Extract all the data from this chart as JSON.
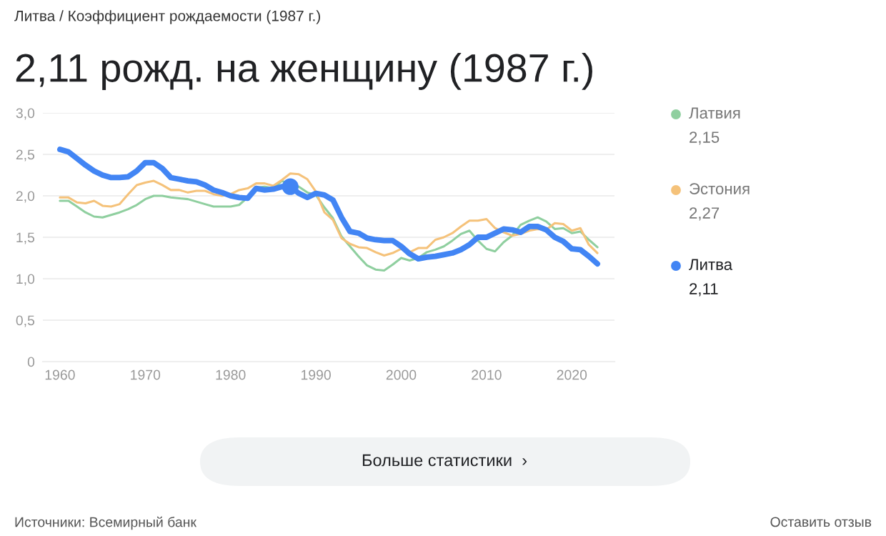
{
  "chart_data": {
    "type": "line",
    "title": "2,11 рожд. на женщину (1987 г.)",
    "x": [
      1960,
      1961,
      1962,
      1963,
      1964,
      1965,
      1966,
      1967,
      1968,
      1969,
      1970,
      1971,
      1972,
      1973,
      1974,
      1975,
      1976,
      1977,
      1978,
      1979,
      1980,
      1981,
      1982,
      1983,
      1984,
      1985,
      1986,
      1987,
      1988,
      1989,
      1990,
      1991,
      1992,
      1993,
      1994,
      1995,
      1996,
      1997,
      1998,
      1999,
      2000,
      2001,
      2002,
      2003,
      2004,
      2005,
      2006,
      2007,
      2008,
      2009,
      2010,
      2011,
      2012,
      2013,
      2014,
      2015,
      2016,
      2017,
      2018,
      2019,
      2020,
      2021,
      2022,
      2023
    ],
    "series": [
      {
        "name": "Латвия",
        "color": "#8fcf9f",
        "values": [
          1.94,
          1.94,
          1.87,
          1.8,
          1.75,
          1.74,
          1.77,
          1.8,
          1.84,
          1.89,
          1.96,
          2.0,
          2.0,
          1.98,
          1.97,
          1.96,
          1.93,
          1.9,
          1.87,
          1.87,
          1.87,
          1.89,
          1.98,
          2.1,
          2.11,
          2.09,
          2.18,
          null,
          2.11,
          2.04,
          2.01,
          1.86,
          1.73,
          1.51,
          1.39,
          1.27,
          1.16,
          1.11,
          1.1,
          1.17,
          1.25,
          1.22,
          1.25,
          1.32,
          1.35,
          1.39,
          1.46,
          1.54,
          1.58,
          1.46,
          1.36,
          1.33,
          1.44,
          1.52,
          1.65,
          1.7,
          1.74,
          1.69,
          1.6,
          1.61,
          1.55,
          1.57,
          1.47,
          1.38
        ]
      },
      {
        "name": "Эстония",
        "color": "#f5c27a",
        "values": [
          1.98,
          1.98,
          1.92,
          1.91,
          1.94,
          1.88,
          1.87,
          1.9,
          2.02,
          2.13,
          2.16,
          2.18,
          2.13,
          2.07,
          2.07,
          2.04,
          2.06,
          2.06,
          2.02,
          2.0,
          2.02,
          2.07,
          2.09,
          2.15,
          2.15,
          2.12,
          2.19,
          2.27,
          2.26,
          2.2,
          2.05,
          1.8,
          1.71,
          1.49,
          1.42,
          1.38,
          1.37,
          1.32,
          1.28,
          1.31,
          1.36,
          1.32,
          1.37,
          1.37,
          1.47,
          1.5,
          1.55,
          1.63,
          1.7,
          1.7,
          1.72,
          1.61,
          1.56,
          1.52,
          1.54,
          1.58,
          1.6,
          1.59,
          1.67,
          1.66,
          1.58,
          1.61,
          1.41,
          1.31
        ]
      },
      {
        "name": "Литва",
        "color": "#4285f4",
        "values": [
          2.56,
          2.53,
          2.45,
          2.37,
          2.3,
          2.25,
          2.22,
          2.22,
          2.23,
          2.3,
          2.4,
          2.4,
          2.33,
          2.22,
          2.2,
          2.18,
          2.17,
          2.13,
          2.07,
          2.04,
          2.0,
          1.98,
          1.97,
          2.09,
          2.07,
          2.08,
          2.11,
          2.11,
          2.03,
          1.98,
          2.03,
          2.01,
          1.95,
          1.74,
          1.57,
          1.55,
          1.49,
          1.47,
          1.46,
          1.46,
          1.39,
          1.3,
          1.24,
          1.26,
          1.27,
          1.29,
          1.31,
          1.35,
          1.41,
          1.5,
          1.5,
          1.55,
          1.6,
          1.59,
          1.56,
          1.63,
          1.63,
          1.59,
          1.5,
          1.45,
          1.36,
          1.35,
          1.27,
          1.18
        ]
      },
      {
        "type": "scatter",
        "color": "#4285f4",
        "x": [
          1987
        ],
        "values": [
          2.11
        ]
      }
    ],
    "xlim": [
      1958,
      2025
    ],
    "ylim": [
      0,
      3
    ],
    "xticks": [
      1960,
      1970,
      1980,
      1990,
      2000,
      2010,
      2020
    ],
    "yticks": [
      0,
      {
        "value": 0.5,
        "label": "0,5"
      },
      {
        "value": 1,
        "label": "1,0"
      },
      {
        "value": 1.5,
        "label": "1,5"
      },
      {
        "value": 2,
        "label": "2,0"
      },
      {
        "value": 2.5,
        "label": "2,5"
      },
      {
        "value": 3,
        "label": "3,0"
      }
    ],
    "grid": "y",
    "legend": "right",
    "annotations": [
      "Литва / Коэффициент рождаемости (1987 г.)",
      "2,15",
      "2,27",
      "2,11",
      "Больше статистики  ›",
      "Источники: Всемирный банк",
      "Оставить отзыв"
    ]
  }
}
